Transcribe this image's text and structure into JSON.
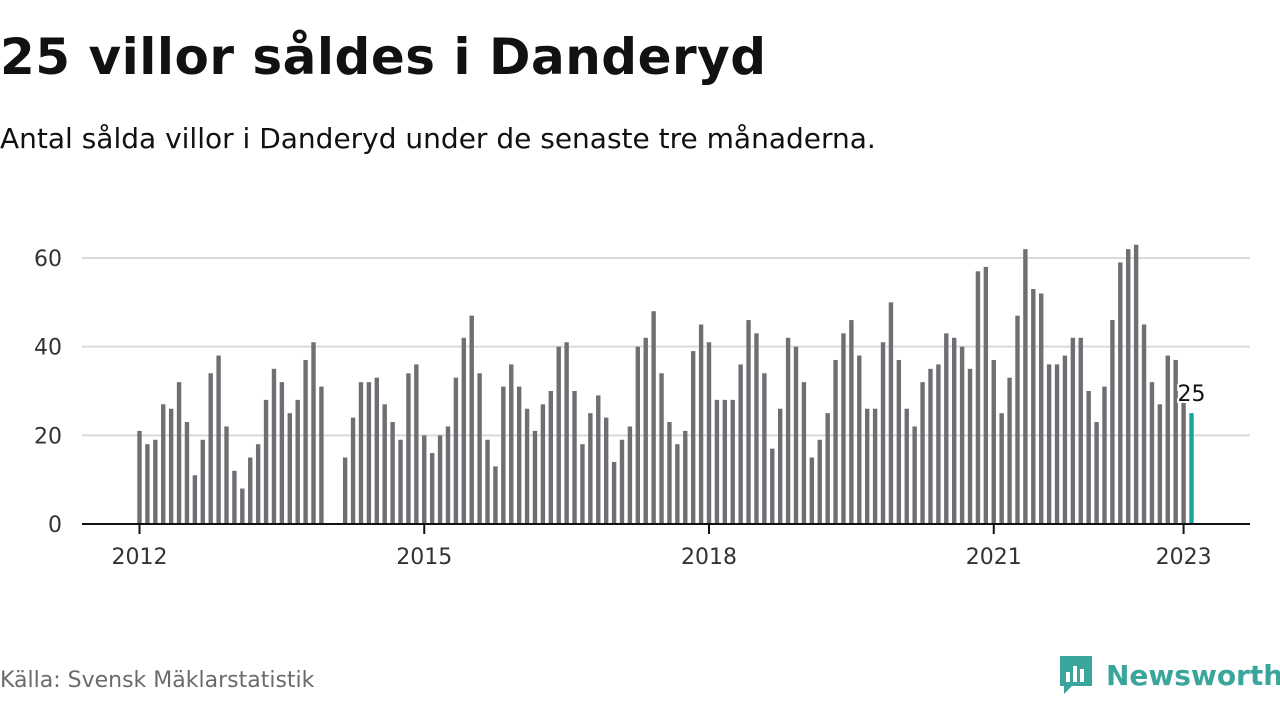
{
  "title": "25 villor såldes i Danderyd",
  "subtitle": "Antal sålda villor i Danderyd under de senaste tre månaderna.",
  "source": "Källa: Svensk Mäklarstatistik",
  "brand": {
    "name": "Newsworthy",
    "icon": "newsworthy-logo-icon",
    "color": "#3aa59a"
  },
  "colors": {
    "bar": "#6f6e73",
    "highlight": "#1aa59a",
    "grid": "#d9d9d9",
    "axis": "#111111"
  },
  "chart_data": {
    "type": "bar",
    "title": "25 villor såldes i Danderyd",
    "xlabel": "",
    "ylabel": "",
    "ylim": [
      0,
      70
    ],
    "yticks": [
      "0",
      "20",
      "40",
      "60"
    ],
    "xticks": [
      "2012",
      "2015",
      "2018",
      "2021",
      "2023"
    ],
    "grid": true,
    "x_start": "2012-01",
    "x_end": "2023-01",
    "highlight_label": "25",
    "values": [
      21,
      18,
      19,
      27,
      26,
      32,
      23,
      11,
      19,
      34,
      38,
      22,
      12,
      8,
      15,
      18,
      28,
      35,
      32,
      25,
      28,
      37,
      41,
      31,
      null,
      null,
      15,
      24,
      32,
      32,
      33,
      27,
      23,
      19,
      34,
      36,
      20,
      16,
      20,
      22,
      33,
      42,
      47,
      34,
      19,
      13,
      31,
      36,
      31,
      26,
      21,
      27,
      30,
      40,
      41,
      30,
      18,
      25,
      29,
      24,
      14,
      19,
      22,
      40,
      42,
      48,
      34,
      23,
      18,
      21,
      39,
      45,
      41,
      28,
      28,
      28,
      36,
      46,
      43,
      34,
      17,
      26,
      42,
      40,
      32,
      15,
      19,
      25,
      37,
      43,
      46,
      38,
      26,
      26,
      41,
      50,
      37,
      26,
      22,
      32,
      35,
      36,
      43,
      42,
      40,
      35,
      57,
      58,
      37,
      25,
      33,
      47,
      62,
      53,
      52,
      36,
      36,
      38,
      42,
      42,
      30,
      23,
      31,
      46,
      59,
      62,
      63,
      45,
      32,
      27,
      38,
      37,
      28,
      25
    ]
  }
}
